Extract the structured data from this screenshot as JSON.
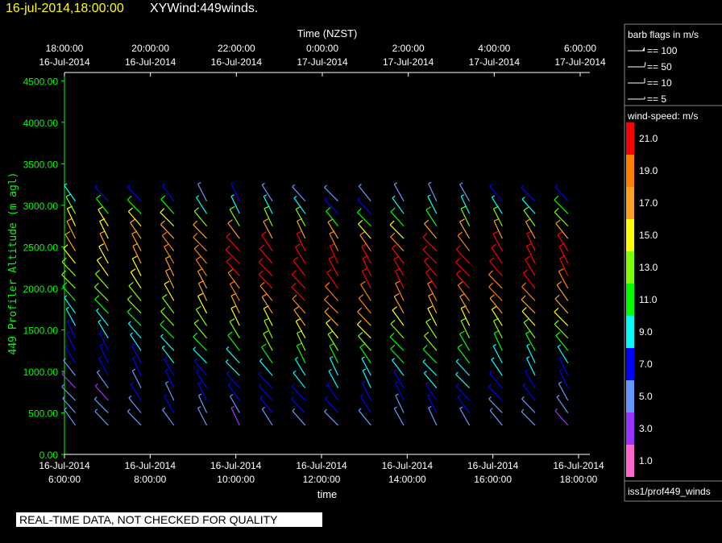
{
  "header": {
    "date_time": "16-jul-2014,18:00:00",
    "product": "XYWind:449winds."
  },
  "footer": {
    "quality_notice": "REAL-TIME DATA, NOT CHECKED FOR QUALITY"
  },
  "chart_data": {
    "type": "wind-barb",
    "top_axis": {
      "title": "Time (NZST)",
      "ticks": [
        {
          "time": "18:00:00",
          "date": "16-Jul-2014"
        },
        {
          "time": "20:00:00",
          "date": "16-Jul-2014"
        },
        {
          "time": "22:00:00",
          "date": "16-Jul-2014"
        },
        {
          "time": "0:00:00",
          "date": "17-Jul-2014"
        },
        {
          "time": "2:00:00",
          "date": "17-Jul-2014"
        },
        {
          "time": "4:00:00",
          "date": "17-Jul-2014"
        },
        {
          "time": "6:00:00",
          "date": "17-Jul-2014"
        }
      ]
    },
    "bottom_axis": {
      "title": "time",
      "ticks": [
        {
          "date": "16-Jul-2014",
          "time": "6:00:00"
        },
        {
          "date": "16-Jul-2014",
          "time": "8:00:00"
        },
        {
          "date": "16-Jul-2014",
          "time": "10:00:00"
        },
        {
          "date": "16-Jul-2014",
          "time": "12:00:00"
        },
        {
          "date": "16-Jul-2014",
          "time": "14:00:00"
        },
        {
          "date": "16-Jul-2014",
          "time": "16:00:00"
        },
        {
          "date": "16-Jul-2014",
          "time": "18:00:00"
        }
      ]
    },
    "y_axis": {
      "title": "449 Profiler Altitude (m agl)",
      "ticks": [
        "4500.00",
        "4000.00",
        "3500.00",
        "3000.00",
        "2500.00",
        "2000.00",
        "1500.00",
        "1000.00",
        "500.00",
        "0.00"
      ],
      "range": [
        0,
        4600
      ],
      "color": "#00ff00"
    },
    "x_range_hours": [
      6,
      18
    ],
    "legend": {
      "barb_title": "barb flags in m/s",
      "barbs": [
        {
          "label": "== 100",
          "type": "pennant"
        },
        {
          "label": "== 50",
          "type": "flag"
        },
        {
          "label": "== 10",
          "type": "full"
        },
        {
          "label": "== 5",
          "type": "half"
        }
      ],
      "colorbar_title": "wind-speed: m/s",
      "colorbar": [
        {
          "label": "21.0",
          "color": "#ff0000"
        },
        {
          "label": "19.0",
          "color": "#ff8000"
        },
        {
          "label": "17.0",
          "color": "#ffa020"
        },
        {
          "label": "15.0",
          "color": "#ffff00"
        },
        {
          "label": "13.0",
          "color": "#80ff00"
        },
        {
          "label": "11.0",
          "color": "#00ff00"
        },
        {
          "label": "9.0",
          "color": "#00ffff"
        },
        {
          "label": "7.0",
          "color": "#0000ff"
        },
        {
          "label": "5.0",
          "color": "#6699ff"
        },
        {
          "label": "3.0",
          "color": "#9933ff"
        },
        {
          "label": "1.0",
          "color": "#ff66cc"
        }
      ],
      "source": "iss1/prof449_winds"
    },
    "profiles": {
      "times_hours": [
        6.25,
        7.0,
        7.75,
        8.5,
        9.25,
        10.0,
        10.75,
        11.5,
        12.25,
        13.0,
        13.75,
        14.5,
        15.25,
        16.0,
        16.75,
        17.5
      ],
      "altitudes_m": [
        350,
        500,
        650,
        800,
        950,
        1100,
        1250,
        1400,
        1550,
        1700,
        1850,
        2000,
        2150,
        2300,
        2450,
        2600,
        2750,
        2900,
        3050
      ],
      "speeds_ms": [
        [
          4,
          5,
          5,
          3,
          4,
          6,
          7,
          7,
          8,
          9,
          11,
          12,
          13,
          14,
          16,
          17,
          15,
          12,
          8
        ],
        [
          4,
          5,
          3,
          5,
          6,
          7,
          7,
          8,
          9,
          10,
          12,
          13,
          14,
          15,
          16,
          15,
          14,
          11,
          7
        ],
        [
          5,
          4,
          6,
          5,
          6,
          7,
          8,
          9,
          11,
          12,
          13,
          14,
          15,
          17,
          17,
          16,
          14,
          10,
          6
        ],
        [
          5,
          6,
          5,
          6,
          7,
          8,
          9,
          10,
          12,
          13,
          14,
          16,
          17,
          18,
          18,
          17,
          14,
          10,
          6
        ],
        [
          4,
          5,
          6,
          7,
          7,
          8,
          10,
          12,
          13,
          15,
          16,
          17,
          19,
          19,
          18,
          16,
          13,
          9,
          5
        ],
        [
          3,
          5,
          6,
          7,
          8,
          9,
          11,
          13,
          14,
          16,
          18,
          19,
          20,
          21,
          20,
          17,
          13,
          9,
          6
        ],
        [
          4,
          6,
          7,
          7,
          8,
          10,
          12,
          13,
          15,
          17,
          19,
          20,
          21,
          21,
          20,
          17,
          12,
          8,
          5
        ],
        [
          5,
          6,
          7,
          8,
          9,
          11,
          12,
          14,
          16,
          18,
          20,
          21,
          22,
          22,
          20,
          16,
          12,
          8,
          5
        ],
        [
          5,
          6,
          7,
          8,
          9,
          11,
          12,
          14,
          16,
          18,
          19,
          21,
          22,
          21,
          19,
          16,
          11,
          7,
          4
        ],
        [
          4,
          6,
          7,
          8,
          9,
          10,
          12,
          14,
          16,
          18,
          19,
          20,
          21,
          21,
          19,
          15,
          11,
          7,
          5
        ],
        [
          4,
          5,
          6,
          7,
          9,
          10,
          11,
          13,
          15,
          17,
          19,
          20,
          21,
          20,
          18,
          15,
          11,
          8,
          5
        ],
        [
          5,
          6,
          7,
          8,
          9,
          10,
          12,
          13,
          15,
          17,
          19,
          21,
          22,
          22,
          20,
          16,
          11,
          8,
          5
        ],
        [
          4,
          6,
          7,
          8,
          9,
          10,
          11,
          13,
          15,
          16,
          18,
          20,
          21,
          21,
          19,
          16,
          12,
          8,
          5
        ],
        [
          4,
          5,
          6,
          7,
          8,
          9,
          10,
          12,
          14,
          16,
          18,
          19,
          21,
          21,
          20,
          17,
          13,
          9,
          6
        ],
        [
          4,
          5,
          6,
          7,
          8,
          9,
          11,
          12,
          14,
          16,
          18,
          20,
          21,
          21,
          20,
          17,
          13,
          9,
          6
        ],
        [
          3,
          4,
          5,
          6,
          7,
          9,
          10,
          12,
          14,
          16,
          17,
          19,
          20,
          21,
          20,
          17,
          13,
          10,
          7
        ]
      ]
    }
  }
}
